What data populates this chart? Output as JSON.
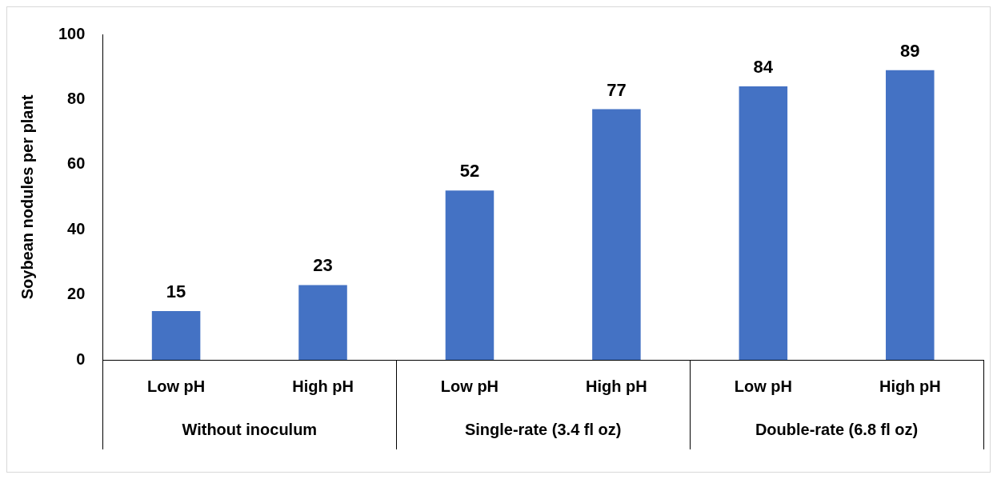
{
  "chart_data": {
    "type": "bar",
    "ylabel": "Soybean nodules per plant",
    "categories": [
      "Low pH",
      "High pH",
      "Low pH",
      "High pH",
      "Low pH",
      "High pH"
    ],
    "values": [
      15,
      23,
      52,
      77,
      84,
      89
    ],
    "color": "#4472c4",
    "ylim": [
      0,
      100
    ],
    "yticks": [
      0,
      20,
      40,
      60,
      80,
      100
    ],
    "grid": false,
    "legend": false,
    "data_labels": true,
    "annotations": [
      "Without inoculum",
      "Single-rate (3.4 fl oz)",
      "Double-rate (6.8 fl oz)"
    ]
  }
}
